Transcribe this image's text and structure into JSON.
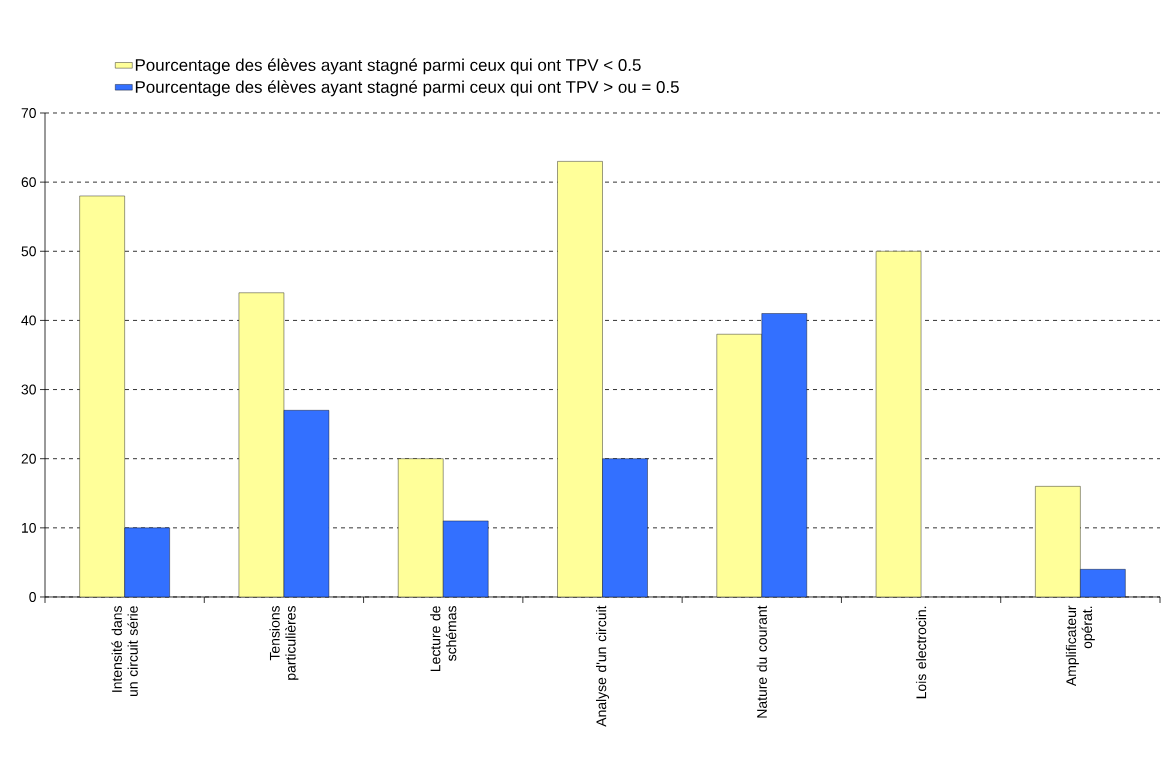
{
  "chart_data": {
    "type": "bar",
    "categories": [
      "Intensité dans un circuit série",
      "Tensions particulières",
      "Lecture de schémas",
      "Analyse d'un circuit",
      "Nature du courant",
      "Lois electrocin.",
      "Amplificateur opérat."
    ],
    "series": [
      {
        "name": "Pourcentage des élèves ayant stagné parmi ceux qui ont TPV < 0.5",
        "color": "#ffff99",
        "values": [
          58,
          44,
          20,
          63,
          38,
          50,
          16
        ]
      },
      {
        "name": "Pourcentage des élèves ayant stagné parmi ceux qui ont TPV > ou = 0.5",
        "color": "#3370ff",
        "values": [
          10,
          27,
          11,
          20,
          41,
          null,
          4
        ]
      }
    ],
    "ylim": [
      0,
      70
    ],
    "yticks": [
      0,
      10,
      20,
      30,
      40,
      50,
      60,
      70
    ],
    "grid": "y",
    "legend": "top"
  }
}
